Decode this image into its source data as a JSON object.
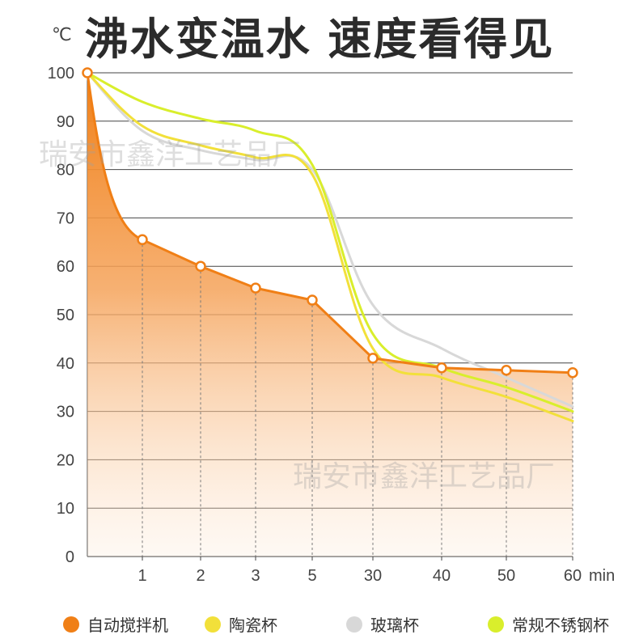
{
  "title": "沸水变温水 速度看得见",
  "unit": "℃",
  "watermark": "瑞安市鑫洋工艺品厂",
  "legend": [
    {
      "label": "自动搅拌机",
      "color": "#f07f16"
    },
    {
      "label": "陶瓷杯",
      "color": "#f2e03a"
    },
    {
      "label": "玻璃杯",
      "color": "#d8d8d8"
    },
    {
      "label": "常规不锈钢杯",
      "color": "#d9ee2c"
    }
  ],
  "chart_data": {
    "type": "area",
    "categories": [
      "",
      "1",
      "2",
      "3",
      "5",
      "30",
      "40",
      "50",
      "60"
    ],
    "xunit": "min",
    "ylim": [
      0,
      100
    ],
    "yticks": [
      "0",
      "10",
      "20",
      "30",
      "40",
      "50",
      "60",
      "70",
      "80",
      "90",
      "100"
    ],
    "series": [
      {
        "name": "自动搅拌机",
        "color": "#f07f16",
        "values": [
          100,
          65.5,
          60,
          55.5,
          53,
          41,
          39,
          38.5,
          38
        ]
      },
      {
        "name": "陶瓷杯",
        "color": "#f2e03a",
        "values": [
          100,
          89,
          85,
          82.5,
          79,
          43,
          37,
          33,
          28
        ]
      },
      {
        "name": "玻璃杯",
        "color": "#d8d8d8",
        "values": [
          100,
          88,
          84,
          82,
          80,
          52,
          43,
          37,
          31
        ]
      },
      {
        "name": "常规不锈钢杯",
        "color": "#d9ee2c",
        "values": [
          100,
          94,
          90.5,
          88,
          81,
          46,
          39,
          35,
          30
        ]
      }
    ]
  }
}
